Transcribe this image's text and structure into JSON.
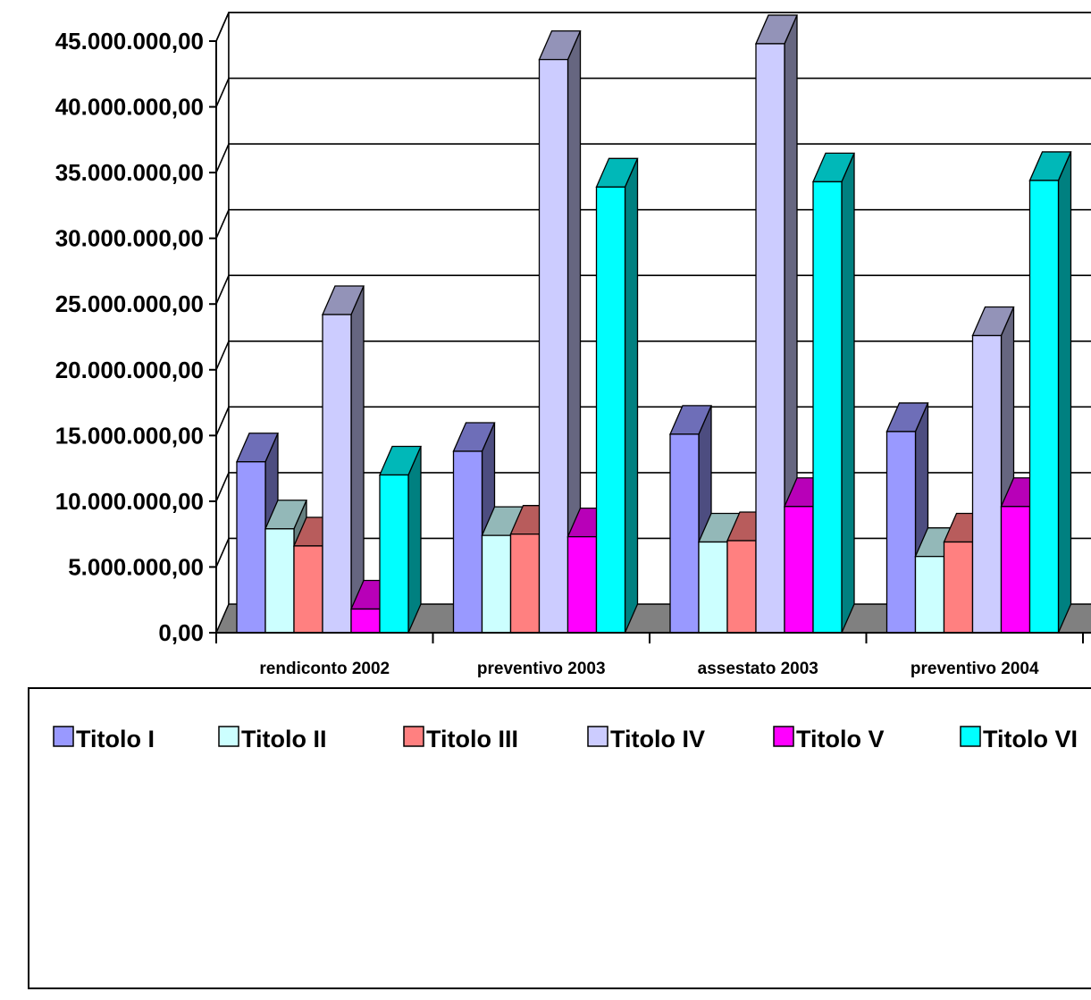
{
  "chart_data": {
    "type": "bar",
    "style": "3d-clustered-column",
    "categories": [
      "rendiconto 2002",
      "preventivo 2003",
      "assestato 2003",
      "preventivo 2004"
    ],
    "series": [
      {
        "name": "Titolo I",
        "color": "#9999ff",
        "values": [
          13000000,
          13800000,
          15100000,
          15300000
        ]
      },
      {
        "name": "Titolo II",
        "color": "#ccffff",
        "values": [
          7900000,
          7400000,
          6900000,
          5800000
        ]
      },
      {
        "name": "Titolo III",
        "color": "#ff8080",
        "values": [
          6600000,
          7500000,
          7000000,
          6900000
        ]
      },
      {
        "name": "Titolo IV",
        "color": "#ccccff",
        "values": [
          24200000,
          43600000,
          44800000,
          22600000
        ]
      },
      {
        "name": "Titolo V",
        "color": "#ff00ff",
        "values": [
          1800000,
          7300000,
          9600000,
          9600000
        ]
      },
      {
        "name": "Titolo VI",
        "color": "#00ffff",
        "values": [
          12000000,
          33900000,
          34300000,
          34400000
        ]
      }
    ],
    "yticks": [
      "0,00",
      "5.000.000,00",
      "10.000.000,00",
      "15.000.000,00",
      "20.000.000,00",
      "25.000.000,00",
      "30.000.000,00",
      "35.000.000,00",
      "40.000.000,00",
      "45.000.000,00"
    ],
    "ylim": [
      0,
      45000000
    ],
    "grid": true,
    "legend": "bottom"
  }
}
